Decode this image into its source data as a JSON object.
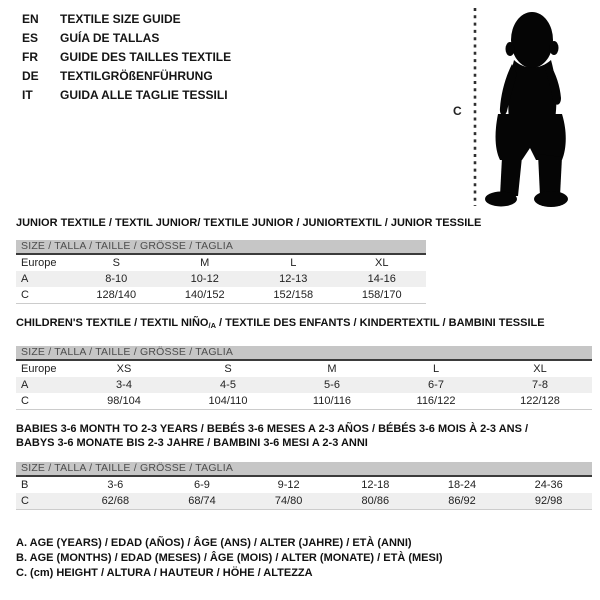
{
  "colors": {
    "size_bar_bg": "#c6c6c6",
    "size_bar_text": "#4d4d4d",
    "size_bar_border": "#3b3b3b",
    "shaded_row_bg": "#efefef",
    "text": "#111111",
    "silhouette": "#050505"
  },
  "header": {
    "languages": [
      {
        "code": "EN",
        "label": "TEXTILE SIZE GUIDE"
      },
      {
        "code": "ES",
        "label": "GUÍA DE TALLAS"
      },
      {
        "code": "FR",
        "label": "GUIDE DES TAILLES TEXTILE"
      },
      {
        "code": "DE",
        "label": "TEXTILGRÖßENFÜHRUNG"
      },
      {
        "code": "IT",
        "label": "GUIDA ALLE TAGLIE TESSILI"
      }
    ],
    "figure": {
      "height_label": "C",
      "figure_name": "toddler-silhouette"
    }
  },
  "sections": [
    {
      "title_lines": [
        [
          {
            "text": "JUNIOR TEXTILE / TEXTIL JUNIOR/ TEXTILE JUNIOR / JUNIORTEXTIL / JUNIOR TESSILE"
          }
        ]
      ],
      "size_bar": "SIZE / TALLA / TAILLE / GRÖSSE / TAGLIA",
      "header_row": {
        "label": "Europe",
        "cells": [
          "S",
          "M",
          "L",
          "XL"
        ]
      },
      "rows": [
        {
          "label": "A",
          "cells": [
            "8-10",
            "10-12",
            "12-13",
            "14-16"
          ],
          "shaded": true
        },
        {
          "label": "C",
          "cells": [
            "128/140",
            "140/152",
            "152/158",
            "158/170"
          ],
          "shaded": false
        }
      ]
    },
    {
      "title_lines": [
        [
          {
            "text": "CHILDREN'S TEXTILE / TEXTIL NIÑO"
          },
          {
            "text": "/A",
            "sub": true
          },
          {
            "text": " / TEXTILE DES ENFANTS / KINDERTEXTIL / BAMBINI TESSILE"
          }
        ]
      ],
      "size_bar": "SIZE / TALLA / TAILLE / GRÖSSE / TAGLIA",
      "header_row": {
        "label": "Europe",
        "cells": [
          "XS",
          "S",
          "M",
          "L",
          "XL"
        ]
      },
      "rows": [
        {
          "label": "A",
          "cells": [
            "3-4",
            "4-5",
            "5-6",
            "6-7",
            "7-8"
          ],
          "shaded": true
        },
        {
          "label": "C",
          "cells": [
            "98/104",
            "104/110",
            "110/116",
            "116/122",
            "122/128"
          ],
          "shaded": false
        }
      ]
    },
    {
      "title_lines": [
        [
          {
            "text": "BABIES 3-6 MONTH TO 2-3 YEARS / BEBÉS 3-6 MESES A 2-3 AÑOS / BÉBÉS 3-6 MOIS À 2-3 ANS /"
          }
        ],
        [
          {
            "text": "BABYS 3-6 MONATE BIS 2-3 JAHRE / BAMBINI 3-6 MESI A 2-3 ANNI"
          }
        ]
      ],
      "size_bar": "SIZE / TALLA / TAILLE / GRÖSSE / TAGLIA",
      "header_row": null,
      "rows": [
        {
          "label": "B",
          "cells": [
            "3-6",
            "6-9",
            "9-12",
            "12-18",
            "18-24",
            "24-36"
          ],
          "shaded": false
        },
        {
          "label": "C",
          "cells": [
            "62/68",
            "68/74",
            "74/80",
            "80/86",
            "86/92",
            "92/98"
          ],
          "shaded": true
        }
      ]
    }
  ],
  "legend": [
    "A. AGE (YEARS) / EDAD (AÑOS) / ÂGE (ANS) / ALTER (JAHRE) / ETÀ (ANNI)",
    "B. AGE (MONTHS) / EDAD (MESES) / ÂGE (MOIS) / ALTER (MONATE) / ETÀ (MESI)",
    "C. (cm) HEIGHT / ALTURA / HAUTEUR / HÖHE / ALTEZZA"
  ]
}
